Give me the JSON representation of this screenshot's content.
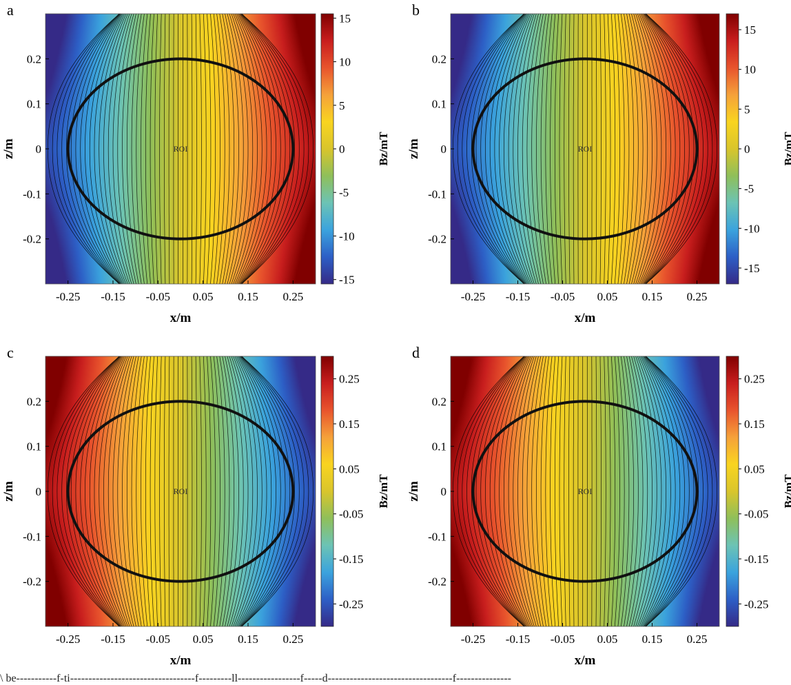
{
  "chart_data": [
    {
      "type": "heatmap",
      "panel": "a",
      "title": "",
      "xlabel": "x/m",
      "ylabel": "z/m",
      "colorbar_label": "Bz/mT",
      "xlim": [
        -0.3,
        0.3
      ],
      "ylim": [
        -0.3,
        0.3
      ],
      "xticks": [
        -0.25,
        -0.15,
        -0.05,
        0.05,
        0.15,
        0.25
      ],
      "xtick_labels": [
        "-0.25",
        "-0.15",
        "-0.05",
        "0.05",
        "0.15",
        "0.25"
      ],
      "yticks": [
        0.2,
        0.1,
        0,
        -0.1,
        -0.2
      ],
      "ytick_labels": [
        "0.2",
        "0.1",
        "0",
        "-0.1",
        "-0.2"
      ],
      "clim": [
        -15.5,
        15.5
      ],
      "cticks": [
        15,
        10,
        5,
        0,
        -5,
        -10,
        -15
      ],
      "ctick_labels": [
        "15",
        "10",
        "5",
        "0",
        "-5",
        "-10",
        "-15"
      ],
      "field_sign": 1,
      "peak_value": 15.5,
      "roi": {
        "label": "ROI",
        "cx": 0,
        "cz": 0,
        "rx": 0.25,
        "rz": 0.2
      }
    },
    {
      "type": "heatmap",
      "panel": "b",
      "title": "",
      "xlabel": "x/m",
      "ylabel": "z/m",
      "colorbar_label": "Bz/mT",
      "xlim": [
        -0.3,
        0.3
      ],
      "ylim": [
        -0.3,
        0.3
      ],
      "xticks": [
        -0.25,
        -0.15,
        -0.05,
        0.05,
        0.15,
        0.25
      ],
      "xtick_labels": [
        "-0.25",
        "-0.15",
        "-0.05",
        "0.05",
        "0.15",
        "0.25"
      ],
      "yticks": [
        0.2,
        0.1,
        0,
        -0.1,
        -0.2
      ],
      "ytick_labels": [
        "0.2",
        "0.1",
        "0",
        "-0.1",
        "-0.2"
      ],
      "clim": [
        -17,
        17
      ],
      "cticks": [
        15,
        10,
        5,
        0,
        -5,
        -10,
        -15
      ],
      "ctick_labels": [
        "15",
        "10",
        "5",
        "0",
        "-5",
        "-10",
        "-15"
      ],
      "field_sign": 1,
      "peak_value": 17,
      "roi": {
        "label": "ROI",
        "cx": 0,
        "cz": 0,
        "rx": 0.25,
        "rz": 0.2
      }
    },
    {
      "type": "heatmap",
      "panel": "c",
      "title": "",
      "xlabel": "x/m",
      "ylabel": "z/m",
      "colorbar_label": "Bz/mT",
      "xlim": [
        -0.3,
        0.3
      ],
      "ylim": [
        -0.3,
        0.3
      ],
      "xticks": [
        -0.25,
        -0.15,
        -0.05,
        0.05,
        0.15,
        0.25
      ],
      "xtick_labels": [
        "-0.25",
        "-0.15",
        "-0.05",
        "0.05",
        "0.15",
        "0.25"
      ],
      "yticks": [
        0.2,
        0.1,
        0,
        -0.1,
        -0.2
      ],
      "ytick_labels": [
        "0.2",
        "0.1",
        "0",
        "-0.1",
        "-0.2"
      ],
      "clim": [
        -0.3,
        0.3
      ],
      "cticks": [
        0.25,
        0.15,
        0.05,
        -0.05,
        -0.15,
        -0.25
      ],
      "ctick_labels": [
        "0.25",
        "0.15",
        "0.05",
        "-0.05",
        "-0.15",
        "-0.25"
      ],
      "field_sign": -1,
      "peak_value": 0.3,
      "roi": {
        "label": "ROI",
        "cx": 0,
        "cz": 0,
        "rx": 0.25,
        "rz": 0.2
      }
    },
    {
      "type": "heatmap",
      "panel": "d",
      "title": "",
      "xlabel": "x/m",
      "ylabel": "z/m",
      "colorbar_label": "Bz/mT",
      "xlim": [
        -0.3,
        0.3
      ],
      "ylim": [
        -0.3,
        0.3
      ],
      "xticks": [
        -0.25,
        -0.15,
        -0.05,
        0.05,
        0.15,
        0.25
      ],
      "xtick_labels": [
        "-0.25",
        "-0.15",
        "-0.05",
        "0.05",
        "0.15",
        "0.25"
      ],
      "yticks": [
        0.2,
        0.1,
        0,
        -0.1,
        -0.2
      ],
      "ytick_labels": [
        "0.2",
        "0.1",
        "0",
        "-0.1",
        "-0.2"
      ],
      "clim": [
        -0.3,
        0.3
      ],
      "cticks": [
        0.25,
        0.15,
        0.05,
        -0.05,
        -0.15,
        -0.25
      ],
      "ctick_labels": [
        "0.25",
        "0.15",
        "0.05",
        "-0.05",
        "-0.15",
        "-0.25"
      ],
      "field_sign": -1,
      "peak_value": 0.3,
      "roi": {
        "label": "ROI",
        "cx": 0,
        "cz": 0,
        "rx": 0.25,
        "rz": 0.2
      }
    }
  ],
  "colormap": [
    "#352a87",
    "#2d5fc6",
    "#3ba3dd",
    "#6cc3b5",
    "#8fbf5a",
    "#d9c52c",
    "#f9d420",
    "#f5a13a",
    "#e8542d",
    "#c81e1e",
    "#800000"
  ],
  "contour_color": "#000000",
  "caption_fragment": "\\ be-----------f-ti----------------------------------f---------ll-----------------f-----d----------------------------------f---------------",
  "caption_note": ""
}
